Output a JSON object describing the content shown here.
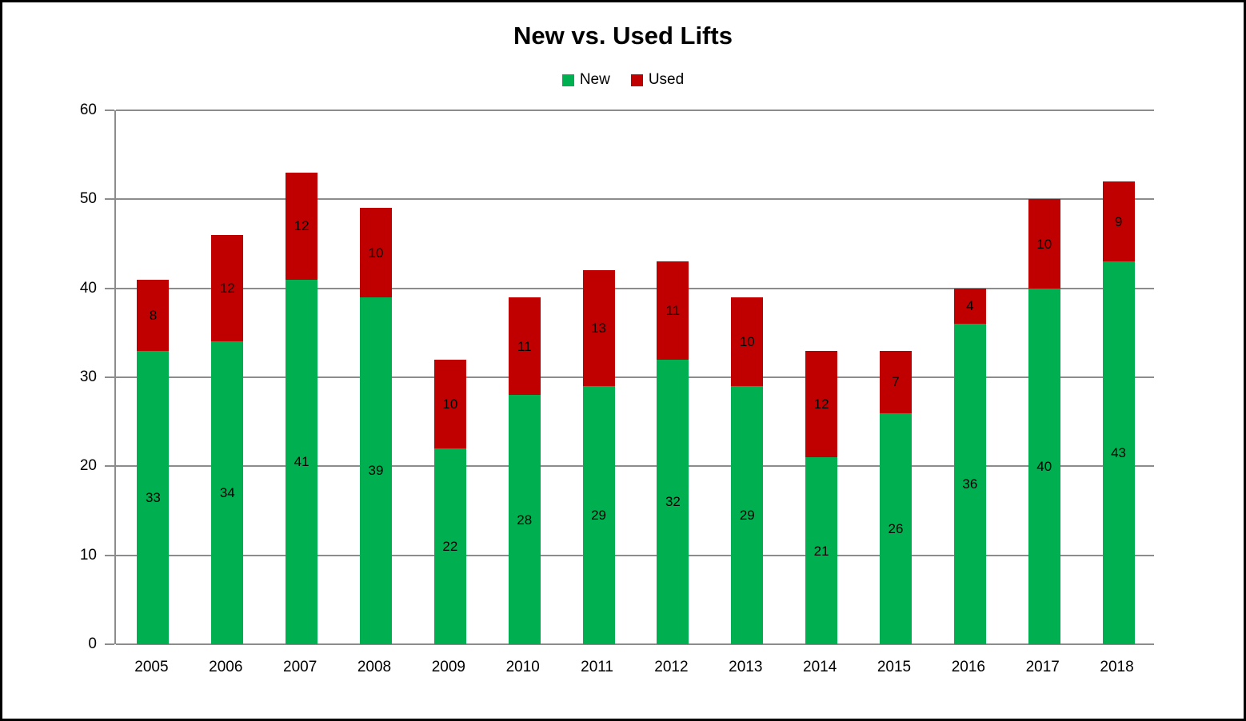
{
  "title": "New vs. Used Lifts",
  "colors": {
    "new": "#00B050",
    "used": "#C00000",
    "gridline": "#8C8C8C",
    "axis": "#8C8C8C",
    "text": "#000000",
    "frame_border": "#000000",
    "background": "#FFFFFF"
  },
  "chart_data": {
    "type": "bar",
    "stacked": true,
    "title": "New vs. Used Lifts",
    "xlabel": "",
    "ylabel": "",
    "categories": [
      "2005",
      "2006",
      "2007",
      "2008",
      "2009",
      "2010",
      "2011",
      "2012",
      "2013",
      "2014",
      "2015",
      "2016",
      "2017",
      "2018"
    ],
    "series": [
      {
        "name": "New",
        "color": "#00B050",
        "values": [
          33,
          34,
          41,
          39,
          22,
          28,
          29,
          32,
          29,
          21,
          26,
          36,
          40,
          43
        ]
      },
      {
        "name": "Used",
        "color": "#C00000",
        "values": [
          8,
          12,
          12,
          10,
          10,
          11,
          13,
          11,
          10,
          12,
          7,
          4,
          10,
          9
        ]
      }
    ],
    "totals": [
      41,
      46,
      53,
      49,
      32,
      39,
      42,
      43,
      39,
      33,
      33,
      40,
      50,
      52
    ],
    "ylim": [
      0,
      60
    ],
    "yticks": [
      0,
      10,
      20,
      30,
      40,
      50,
      60
    ],
    "grid": true,
    "legend_position": "top",
    "data_labels": true
  }
}
